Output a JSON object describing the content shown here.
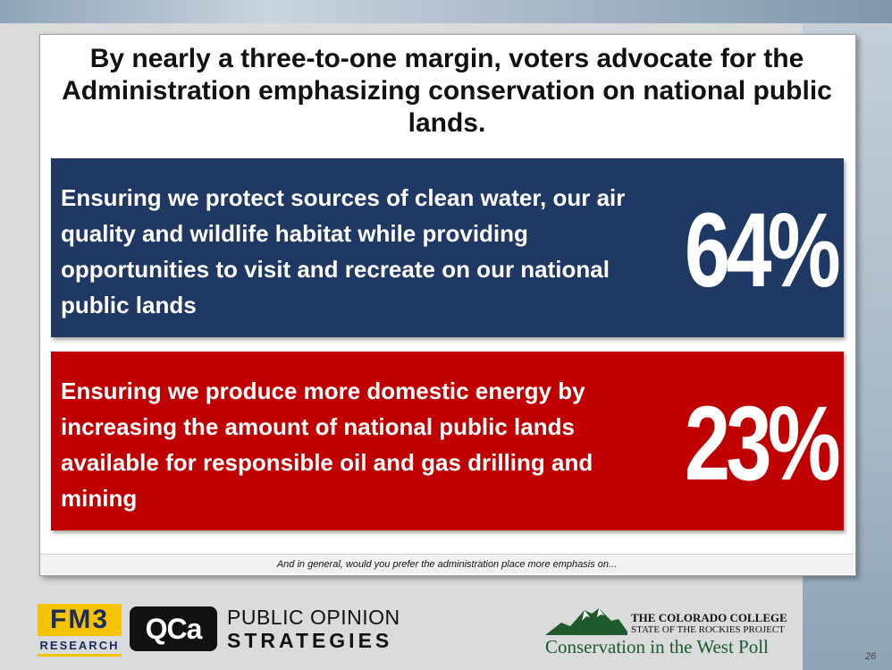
{
  "title": "By nearly a three-to-one margin, voters advocate for the Administration emphasizing conservation on national public lands.",
  "options": [
    {
      "text": "Ensuring we protect sources of clean water, our air quality and wildlife habitat while providing opportunities to visit and recreate on our national public lands",
      "percent": "64%",
      "color": "#1f3864"
    },
    {
      "text": "Ensuring we produce more domestic energy by increasing the amount of national public lands available for responsible oil and gas drilling and mining",
      "percent": "23%",
      "color": "#c00000"
    }
  ],
  "footnote": "And in general, would you prefer the administration place more emphasis on...",
  "logos": {
    "fm3_top": "FM3",
    "fm3_bottom": "RESEARCH",
    "qca": "QCa",
    "pos_line1": "PUBLIC OPINION",
    "pos_line2": "STRATEGIES",
    "cc_line1": "THE COLORADO COLLEGE",
    "cc_line2": "STATE OF THE ROCKIES PROJECT",
    "cc_line3": "Conservation in the West Poll"
  },
  "page_number": "26"
}
